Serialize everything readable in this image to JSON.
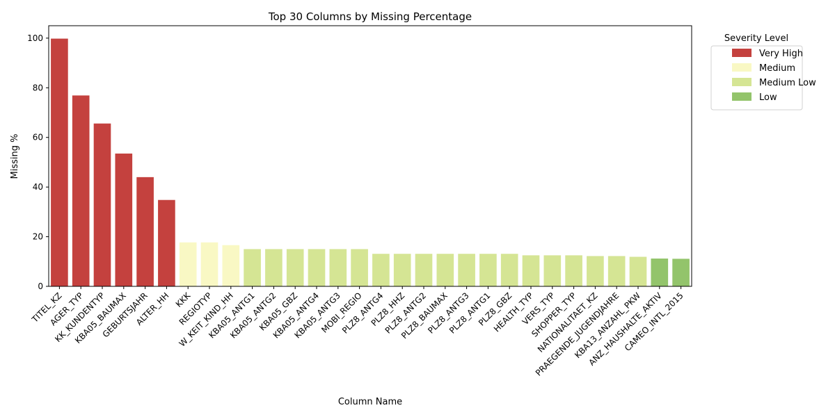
{
  "chart_data": {
    "type": "bar",
    "title": "Top 30 Columns by Missing Percentage",
    "xlabel": "Column Name",
    "ylabel": "Missing %",
    "ylim": [
      0,
      105
    ],
    "yticks": [
      0,
      20,
      40,
      60,
      80,
      100
    ],
    "grid": false,
    "legend_placement": "outside-top-right",
    "legend": {
      "title": "Severity Level",
      "entries": [
        {
          "name": "Very High",
          "color": "#c4413e"
        },
        {
          "name": "Medium",
          "color": "#f9f8c4"
        },
        {
          "name": "Medium Low",
          "color": "#d5e594"
        },
        {
          "name": "Low",
          "color": "#93c46b"
        }
      ]
    },
    "categories": [
      "TITEL_KZ",
      "AGER_TYP",
      "KK_KUNDENTYP",
      "KBA05_BAUMAX",
      "GEBURTSJAHR",
      "ALTER_HH",
      "KKK",
      "REGIOTYP",
      "W_KEIT_KIND_HH",
      "KBA05_ANTG1",
      "KBA05_ANTG2",
      "KBA05_GBZ",
      "KBA05_ANTG4",
      "KBA05_ANTG3",
      "MOBI_REGIO",
      "PLZ8_ANTG4",
      "PLZ8_HHZ",
      "PLZ8_ANTG2",
      "PLZ8_BAUMAX",
      "PLZ8_ANTG3",
      "PLZ8_ANTG1",
      "PLZ8_GBZ",
      "HEALTH_TYP",
      "VERS_TYP",
      "SHOPPER_TYP",
      "NATIONALITAET_KZ",
      "PRAEGENDE_JUGENDJAHRE",
      "KBA13_ANZAHL_PKW",
      "ANZ_HAUSHALTE_AKTIV",
      "CAMEO_INTL_2015"
    ],
    "values": [
      99.8,
      76.9,
      65.6,
      53.5,
      44.0,
      34.8,
      17.7,
      17.7,
      16.6,
      15.0,
      15.0,
      15.0,
      15.0,
      15.0,
      15.0,
      13.1,
      13.1,
      13.1,
      13.1,
      13.1,
      13.1,
      13.1,
      12.5,
      12.5,
      12.5,
      12.2,
      12.2,
      11.9,
      11.2,
      11.1
    ],
    "severity": [
      "Very High",
      "Very High",
      "Very High",
      "Very High",
      "Very High",
      "Very High",
      "Medium",
      "Medium",
      "Medium",
      "Medium Low",
      "Medium Low",
      "Medium Low",
      "Medium Low",
      "Medium Low",
      "Medium Low",
      "Medium Low",
      "Medium Low",
      "Medium Low",
      "Medium Low",
      "Medium Low",
      "Medium Low",
      "Medium Low",
      "Medium Low",
      "Medium Low",
      "Medium Low",
      "Medium Low",
      "Medium Low",
      "Medium Low",
      "Low",
      "Low"
    ]
  }
}
